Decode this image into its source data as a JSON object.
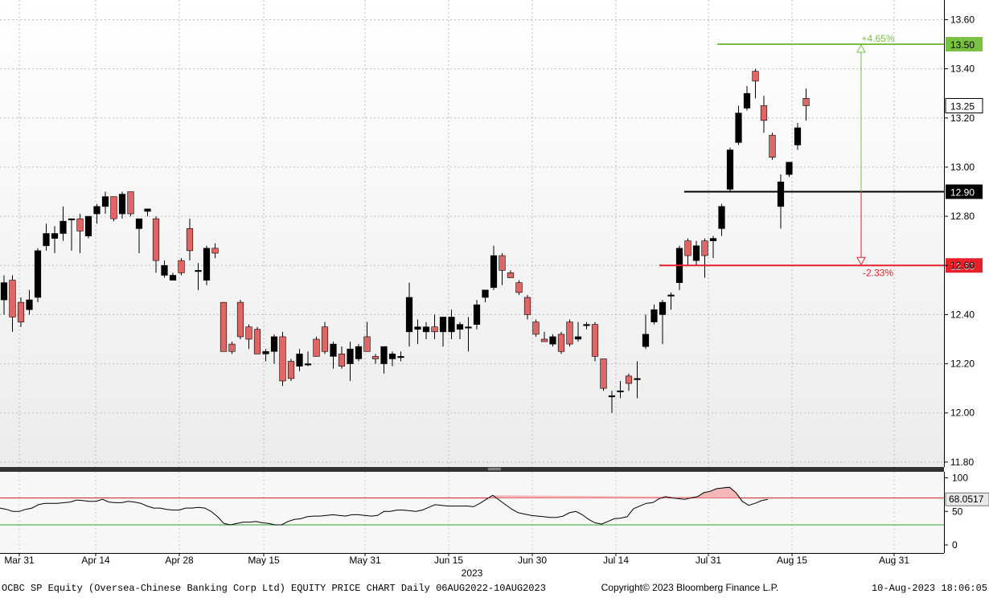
{
  "footer": {
    "left": "OCBC SP Equity (Oversea-Chinese Banking Corp Ltd) EQUITY PRICE CHART  Daily 06AUG2022-10AUG2023",
    "copyright": "Copyright© 2023 Bloomberg Finance L.P.",
    "timestamp": "10-Aug-2023 18:06:05",
    "year": "2023"
  },
  "colors": {
    "up": "#000000",
    "down": "#e06666",
    "target_line": "#7ac143",
    "support_line": "#e8202a",
    "reference_line": "#000000",
    "rsi_line": "#000000",
    "rsi_upper": "#d6222a",
    "rsi_lower": "#2ca02c"
  },
  "chart_data": [
    {
      "type": "candlestick",
      "ylim": [
        11.78,
        13.68
      ],
      "yticks": [
        11.8,
        12.0,
        12.2,
        12.4,
        12.6,
        12.8,
        13.0,
        13.2,
        13.4,
        13.6
      ],
      "ytick_labels": [
        "11.80",
        "12.00",
        "12.20",
        "12.40",
        "12.60",
        "12.80",
        "13.00",
        "13.20",
        "13.40",
        "13.60"
      ],
      "x_labels": [
        "Mar 31",
        "Apr 14",
        "Apr 28",
        "May 15",
        "May 31",
        "Jun 15",
        "Jun 30",
        "Jul 14",
        "Jul 31",
        "Aug 15",
        "Aug 31"
      ],
      "grid": true,
      "candles": [
        {
          "o": 12.46,
          "h": 12.56,
          "l": 12.4,
          "c": 12.53
        },
        {
          "o": 12.54,
          "h": 12.56,
          "l": 12.33,
          "c": 12.39
        },
        {
          "o": 12.45,
          "h": 12.47,
          "l": 12.35,
          "c": 12.37
        },
        {
          "o": 12.42,
          "h": 12.5,
          "l": 12.4,
          "c": 12.46
        },
        {
          "o": 12.47,
          "h": 12.67,
          "l": 12.45,
          "c": 12.66
        },
        {
          "o": 12.68,
          "h": 12.77,
          "l": 12.66,
          "c": 12.73
        },
        {
          "o": 12.71,
          "h": 12.76,
          "l": 12.65,
          "c": 12.73
        },
        {
          "o": 12.73,
          "h": 12.84,
          "l": 12.7,
          "c": 12.78
        },
        {
          "o": 12.79,
          "h": 12.79,
          "l": 12.66,
          "c": 12.79
        },
        {
          "o": 12.79,
          "h": 12.81,
          "l": 12.65,
          "c": 12.74
        },
        {
          "o": 12.72,
          "h": 12.8,
          "l": 12.71,
          "c": 12.8
        },
        {
          "o": 12.81,
          "h": 12.85,
          "l": 12.77,
          "c": 12.84
        },
        {
          "o": 12.84,
          "h": 12.9,
          "l": 12.81,
          "c": 12.88
        },
        {
          "o": 12.88,
          "h": 12.88,
          "l": 12.78,
          "c": 12.79
        },
        {
          "o": 12.81,
          "h": 12.9,
          "l": 12.79,
          "c": 12.89
        },
        {
          "o": 12.9,
          "h": 12.9,
          "l": 12.8,
          "c": 12.81
        },
        {
          "o": 12.75,
          "h": 12.79,
          "l": 12.65,
          "c": 12.79
        },
        {
          "o": 12.82,
          "h": 12.83,
          "l": 12.8,
          "c": 12.83
        },
        {
          "o": 12.79,
          "h": 12.8,
          "l": 12.57,
          "c": 12.62
        },
        {
          "o": 12.56,
          "h": 12.62,
          "l": 12.55,
          "c": 12.6
        },
        {
          "o": 12.54,
          "h": 12.57,
          "l": 12.54,
          "c": 12.56
        },
        {
          "o": 12.62,
          "h": 12.63,
          "l": 12.56,
          "c": 12.57
        },
        {
          "o": 12.75,
          "h": 12.79,
          "l": 12.62,
          "c": 12.66
        },
        {
          "o": 12.58,
          "h": 12.61,
          "l": 12.5,
          "c": 12.58
        },
        {
          "o": 12.54,
          "h": 12.68,
          "l": 12.52,
          "c": 12.67
        },
        {
          "o": 12.67,
          "h": 12.69,
          "l": 12.63,
          "c": 12.65
        },
        {
          "o": 12.45,
          "h": 12.45,
          "l": 12.25,
          "c": 12.25
        },
        {
          "o": 12.28,
          "h": 12.29,
          "l": 12.24,
          "c": 12.25
        },
        {
          "o": 12.45,
          "h": 12.46,
          "l": 12.3,
          "c": 12.31
        },
        {
          "o": 12.35,
          "h": 12.36,
          "l": 12.26,
          "c": 12.3
        },
        {
          "o": 12.34,
          "h": 12.35,
          "l": 12.24,
          "c": 12.24
        },
        {
          "o": 12.24,
          "h": 12.26,
          "l": 12.21,
          "c": 12.25
        },
        {
          "o": 12.25,
          "h": 12.32,
          "l": 12.2,
          "c": 12.31
        },
        {
          "o": 12.31,
          "h": 12.33,
          "l": 12.11,
          "c": 12.13
        },
        {
          "o": 12.21,
          "h": 12.22,
          "l": 12.13,
          "c": 12.14
        },
        {
          "o": 12.19,
          "h": 12.26,
          "l": 12.17,
          "c": 12.24
        },
        {
          "o": 12.2,
          "h": 12.25,
          "l": 12.19,
          "c": 12.2
        },
        {
          "o": 12.3,
          "h": 12.31,
          "l": 12.23,
          "c": 12.23
        },
        {
          "o": 12.35,
          "h": 12.37,
          "l": 12.24,
          "c": 12.25
        },
        {
          "o": 12.23,
          "h": 12.29,
          "l": 12.18,
          "c": 12.28
        },
        {
          "o": 12.24,
          "h": 12.27,
          "l": 12.18,
          "c": 12.19
        },
        {
          "o": 12.2,
          "h": 12.29,
          "l": 12.13,
          "c": 12.26
        },
        {
          "o": 12.22,
          "h": 12.28,
          "l": 12.21,
          "c": 12.27
        },
        {
          "o": 12.31,
          "h": 12.37,
          "l": 12.25,
          "c": 12.25
        },
        {
          "o": 12.23,
          "h": 12.24,
          "l": 12.2,
          "c": 12.22
        },
        {
          "o": 12.2,
          "h": 12.27,
          "l": 12.16,
          "c": 12.27
        },
        {
          "o": 12.22,
          "h": 12.25,
          "l": 12.19,
          "c": 12.24
        },
        {
          "o": 12.23,
          "h": 12.25,
          "l": 12.21,
          "c": 12.23
        },
        {
          "o": 12.33,
          "h": 12.53,
          "l": 12.27,
          "c": 12.47
        },
        {
          "o": 12.34,
          "h": 12.38,
          "l": 12.28,
          "c": 12.35
        },
        {
          "o": 12.33,
          "h": 12.37,
          "l": 12.3,
          "c": 12.35
        },
        {
          "o": 12.35,
          "h": 12.4,
          "l": 12.3,
          "c": 12.33
        },
        {
          "o": 12.33,
          "h": 12.39,
          "l": 12.27,
          "c": 12.39
        },
        {
          "o": 12.33,
          "h": 12.42,
          "l": 12.3,
          "c": 12.39
        },
        {
          "o": 12.34,
          "h": 12.37,
          "l": 12.3,
          "c": 12.36
        },
        {
          "o": 12.35,
          "h": 12.39,
          "l": 12.25,
          "c": 12.35
        },
        {
          "o": 12.36,
          "h": 12.46,
          "l": 12.34,
          "c": 12.44
        },
        {
          "o": 12.47,
          "h": 12.5,
          "l": 12.45,
          "c": 12.5
        },
        {
          "o": 12.51,
          "h": 12.68,
          "l": 12.5,
          "c": 12.64
        },
        {
          "o": 12.64,
          "h": 12.65,
          "l": 12.52,
          "c": 12.58
        },
        {
          "o": 12.57,
          "h": 12.58,
          "l": 12.55,
          "c": 12.55
        },
        {
          "o": 12.53,
          "h": 12.54,
          "l": 12.48,
          "c": 12.49
        },
        {
          "o": 12.47,
          "h": 12.48,
          "l": 12.38,
          "c": 12.4
        },
        {
          "o": 12.37,
          "h": 12.38,
          "l": 12.31,
          "c": 12.32
        },
        {
          "o": 12.3,
          "h": 12.33,
          "l": 12.29,
          "c": 12.29
        },
        {
          "o": 12.28,
          "h": 12.32,
          "l": 12.27,
          "c": 12.31
        },
        {
          "o": 12.32,
          "h": 12.33,
          "l": 12.24,
          "c": 12.25
        },
        {
          "o": 12.37,
          "h": 12.38,
          "l": 12.27,
          "c": 12.28
        },
        {
          "o": 12.3,
          "h": 12.37,
          "l": 12.29,
          "c": 12.31
        },
        {
          "o": 12.36,
          "h": 12.37,
          "l": 12.34,
          "c": 12.36
        },
        {
          "o": 12.36,
          "h": 12.37,
          "l": 12.21,
          "c": 12.23
        },
        {
          "o": 12.22,
          "h": 12.22,
          "l": 12.09,
          "c": 12.1
        },
        {
          "o": 12.07,
          "h": 12.09,
          "l": 12.0,
          "c": 12.07
        },
        {
          "o": 12.09,
          "h": 12.13,
          "l": 12.06,
          "c": 12.09
        },
        {
          "o": 12.15,
          "h": 12.16,
          "l": 12.09,
          "c": 12.12
        },
        {
          "o": 12.14,
          "h": 12.21,
          "l": 12.06,
          "c": 12.14
        },
        {
          "o": 12.27,
          "h": 12.4,
          "l": 12.26,
          "c": 12.32
        },
        {
          "o": 12.37,
          "h": 12.44,
          "l": 12.36,
          "c": 12.42
        },
        {
          "o": 12.4,
          "h": 12.46,
          "l": 12.28,
          "c": 12.45
        },
        {
          "o": 12.48,
          "h": 12.49,
          "l": 12.42,
          "c": 12.48
        },
        {
          "o": 12.53,
          "h": 12.68,
          "l": 12.5,
          "c": 12.67
        },
        {
          "o": 12.7,
          "h": 12.71,
          "l": 12.6,
          "c": 12.64
        },
        {
          "o": 12.62,
          "h": 12.7,
          "l": 12.6,
          "c": 12.68
        },
        {
          "o": 12.7,
          "h": 12.71,
          "l": 12.55,
          "c": 12.64
        },
        {
          "o": 12.7,
          "h": 12.72,
          "l": 12.63,
          "c": 12.71
        },
        {
          "o": 12.75,
          "h": 12.85,
          "l": 12.72,
          "c": 12.84
        },
        {
          "o": 12.91,
          "h": 13.08,
          "l": 12.9,
          "c": 13.07
        },
        {
          "o": 13.1,
          "h": 13.25,
          "l": 13.09,
          "c": 13.22
        },
        {
          "o": 13.24,
          "h": 13.33,
          "l": 13.23,
          "c": 13.3
        },
        {
          "o": 13.39,
          "h": 13.4,
          "l": 13.28,
          "c": 13.35
        },
        {
          "o": 13.25,
          "h": 13.29,
          "l": 13.14,
          "c": 13.19
        },
        {
          "o": 13.13,
          "h": 13.14,
          "l": 13.03,
          "c": 13.04
        },
        {
          "o": 12.84,
          "h": 12.97,
          "l": 12.75,
          "c": 12.94
        },
        {
          "o": 12.97,
          "h": 13.02,
          "l": 12.96,
          "c": 13.02
        },
        {
          "o": 13.09,
          "h": 13.18,
          "l": 13.07,
          "c": 13.16
        },
        {
          "o": 13.28,
          "h": 13.32,
          "l": 13.19,
          "c": 13.25
        }
      ],
      "annotations": {
        "target": {
          "value": 13.5,
          "label": "13.50",
          "pct": "+4.65%"
        },
        "reference": {
          "value": 12.9,
          "label": "12.90"
        },
        "support": {
          "value": 12.6,
          "label": "12.60",
          "pct": "-2.33%"
        },
        "last": {
          "value": 13.25,
          "label": "13.25"
        }
      }
    },
    {
      "type": "line",
      "ylim": [
        0,
        100
      ],
      "yticks": [
        0,
        50,
        100
      ],
      "ytick_labels": [
        "0",
        "50",
        "100"
      ],
      "upper_level": 70,
      "lower_level": 30,
      "last_label": "68.0517",
      "values": [
        55,
        53,
        50,
        50,
        53,
        55,
        60,
        62,
        62,
        62,
        63,
        64,
        67,
        66,
        65,
        65,
        68,
        64,
        63,
        63,
        65,
        64,
        62,
        58,
        55,
        55,
        53,
        52,
        52,
        55,
        55,
        56,
        55,
        50,
        42,
        32,
        30,
        32,
        34,
        34,
        35,
        33,
        32,
        30,
        30,
        35,
        38,
        39,
        42,
        43,
        43,
        44,
        45,
        44,
        43,
        45,
        45,
        44,
        43,
        44,
        50,
        50,
        52,
        52,
        51,
        50,
        52,
        56,
        60,
        59,
        58,
        58,
        58,
        58,
        57,
        62,
        68,
        74,
        67,
        60,
        53,
        48,
        46,
        44,
        43,
        42,
        41,
        41,
        43,
        48,
        50,
        45,
        38,
        33,
        31,
        35,
        39,
        40,
        42,
        54,
        58,
        62,
        63,
        69,
        72,
        70,
        69,
        68,
        70,
        72,
        78,
        80,
        84,
        85,
        86,
        78,
        65,
        59,
        62,
        66,
        68
      ]
    }
  ]
}
